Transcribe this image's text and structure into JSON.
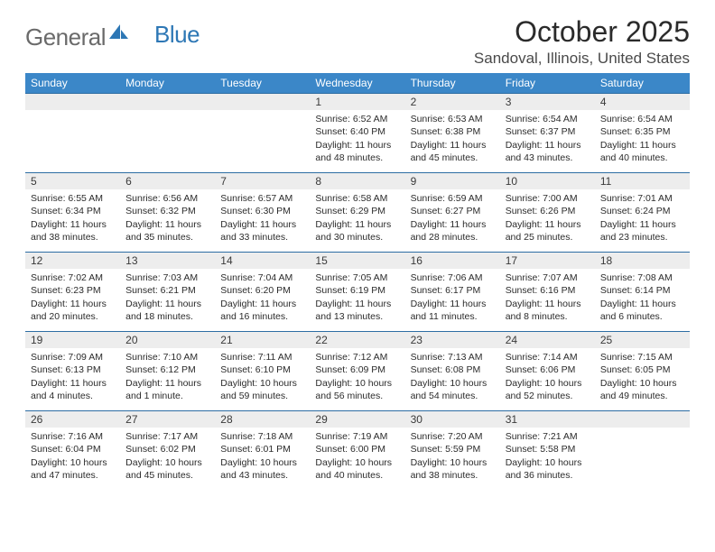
{
  "logo": {
    "general": "General",
    "blue": "Blue"
  },
  "title": "October 2025",
  "location": "Sandoval, Illinois, United States",
  "colors": {
    "header_bg": "#3b87c8",
    "header_text": "#ffffff",
    "row_border": "#2d6da3",
    "daynum_bg": "#ededed",
    "text": "#2b2b2b",
    "logo_gray": "#6a6a6a",
    "logo_blue": "#2d77b5"
  },
  "day_headers": [
    "Sunday",
    "Monday",
    "Tuesday",
    "Wednesday",
    "Thursday",
    "Friday",
    "Saturday"
  ],
  "weeks": [
    [
      {
        "num": "",
        "lines": [
          "",
          "",
          "",
          ""
        ]
      },
      {
        "num": "",
        "lines": [
          "",
          "",
          "",
          ""
        ]
      },
      {
        "num": "",
        "lines": [
          "",
          "",
          "",
          ""
        ]
      },
      {
        "num": "1",
        "lines": [
          "Sunrise: 6:52 AM",
          "Sunset: 6:40 PM",
          "Daylight: 11 hours",
          "and 48 minutes."
        ]
      },
      {
        "num": "2",
        "lines": [
          "Sunrise: 6:53 AM",
          "Sunset: 6:38 PM",
          "Daylight: 11 hours",
          "and 45 minutes."
        ]
      },
      {
        "num": "3",
        "lines": [
          "Sunrise: 6:54 AM",
          "Sunset: 6:37 PM",
          "Daylight: 11 hours",
          "and 43 minutes."
        ]
      },
      {
        "num": "4",
        "lines": [
          "Sunrise: 6:54 AM",
          "Sunset: 6:35 PM",
          "Daylight: 11 hours",
          "and 40 minutes."
        ]
      }
    ],
    [
      {
        "num": "5",
        "lines": [
          "Sunrise: 6:55 AM",
          "Sunset: 6:34 PM",
          "Daylight: 11 hours",
          "and 38 minutes."
        ]
      },
      {
        "num": "6",
        "lines": [
          "Sunrise: 6:56 AM",
          "Sunset: 6:32 PM",
          "Daylight: 11 hours",
          "and 35 minutes."
        ]
      },
      {
        "num": "7",
        "lines": [
          "Sunrise: 6:57 AM",
          "Sunset: 6:30 PM",
          "Daylight: 11 hours",
          "and 33 minutes."
        ]
      },
      {
        "num": "8",
        "lines": [
          "Sunrise: 6:58 AM",
          "Sunset: 6:29 PM",
          "Daylight: 11 hours",
          "and 30 minutes."
        ]
      },
      {
        "num": "9",
        "lines": [
          "Sunrise: 6:59 AM",
          "Sunset: 6:27 PM",
          "Daylight: 11 hours",
          "and 28 minutes."
        ]
      },
      {
        "num": "10",
        "lines": [
          "Sunrise: 7:00 AM",
          "Sunset: 6:26 PM",
          "Daylight: 11 hours",
          "and 25 minutes."
        ]
      },
      {
        "num": "11",
        "lines": [
          "Sunrise: 7:01 AM",
          "Sunset: 6:24 PM",
          "Daylight: 11 hours",
          "and 23 minutes."
        ]
      }
    ],
    [
      {
        "num": "12",
        "lines": [
          "Sunrise: 7:02 AM",
          "Sunset: 6:23 PM",
          "Daylight: 11 hours",
          "and 20 minutes."
        ]
      },
      {
        "num": "13",
        "lines": [
          "Sunrise: 7:03 AM",
          "Sunset: 6:21 PM",
          "Daylight: 11 hours",
          "and 18 minutes."
        ]
      },
      {
        "num": "14",
        "lines": [
          "Sunrise: 7:04 AM",
          "Sunset: 6:20 PM",
          "Daylight: 11 hours",
          "and 16 minutes."
        ]
      },
      {
        "num": "15",
        "lines": [
          "Sunrise: 7:05 AM",
          "Sunset: 6:19 PM",
          "Daylight: 11 hours",
          "and 13 minutes."
        ]
      },
      {
        "num": "16",
        "lines": [
          "Sunrise: 7:06 AM",
          "Sunset: 6:17 PM",
          "Daylight: 11 hours",
          "and 11 minutes."
        ]
      },
      {
        "num": "17",
        "lines": [
          "Sunrise: 7:07 AM",
          "Sunset: 6:16 PM",
          "Daylight: 11 hours",
          "and 8 minutes."
        ]
      },
      {
        "num": "18",
        "lines": [
          "Sunrise: 7:08 AM",
          "Sunset: 6:14 PM",
          "Daylight: 11 hours",
          "and 6 minutes."
        ]
      }
    ],
    [
      {
        "num": "19",
        "lines": [
          "Sunrise: 7:09 AM",
          "Sunset: 6:13 PM",
          "Daylight: 11 hours",
          "and 4 minutes."
        ]
      },
      {
        "num": "20",
        "lines": [
          "Sunrise: 7:10 AM",
          "Sunset: 6:12 PM",
          "Daylight: 11 hours",
          "and 1 minute."
        ]
      },
      {
        "num": "21",
        "lines": [
          "Sunrise: 7:11 AM",
          "Sunset: 6:10 PM",
          "Daylight: 10 hours",
          "and 59 minutes."
        ]
      },
      {
        "num": "22",
        "lines": [
          "Sunrise: 7:12 AM",
          "Sunset: 6:09 PM",
          "Daylight: 10 hours",
          "and 56 minutes."
        ]
      },
      {
        "num": "23",
        "lines": [
          "Sunrise: 7:13 AM",
          "Sunset: 6:08 PM",
          "Daylight: 10 hours",
          "and 54 minutes."
        ]
      },
      {
        "num": "24",
        "lines": [
          "Sunrise: 7:14 AM",
          "Sunset: 6:06 PM",
          "Daylight: 10 hours",
          "and 52 minutes."
        ]
      },
      {
        "num": "25",
        "lines": [
          "Sunrise: 7:15 AM",
          "Sunset: 6:05 PM",
          "Daylight: 10 hours",
          "and 49 minutes."
        ]
      }
    ],
    [
      {
        "num": "26",
        "lines": [
          "Sunrise: 7:16 AM",
          "Sunset: 6:04 PM",
          "Daylight: 10 hours",
          "and 47 minutes."
        ]
      },
      {
        "num": "27",
        "lines": [
          "Sunrise: 7:17 AM",
          "Sunset: 6:02 PM",
          "Daylight: 10 hours",
          "and 45 minutes."
        ]
      },
      {
        "num": "28",
        "lines": [
          "Sunrise: 7:18 AM",
          "Sunset: 6:01 PM",
          "Daylight: 10 hours",
          "and 43 minutes."
        ]
      },
      {
        "num": "29",
        "lines": [
          "Sunrise: 7:19 AM",
          "Sunset: 6:00 PM",
          "Daylight: 10 hours",
          "and 40 minutes."
        ]
      },
      {
        "num": "30",
        "lines": [
          "Sunrise: 7:20 AM",
          "Sunset: 5:59 PM",
          "Daylight: 10 hours",
          "and 38 minutes."
        ]
      },
      {
        "num": "31",
        "lines": [
          "Sunrise: 7:21 AM",
          "Sunset: 5:58 PM",
          "Daylight: 10 hours",
          "and 36 minutes."
        ]
      },
      {
        "num": "",
        "lines": [
          "",
          "",
          "",
          ""
        ]
      }
    ]
  ]
}
